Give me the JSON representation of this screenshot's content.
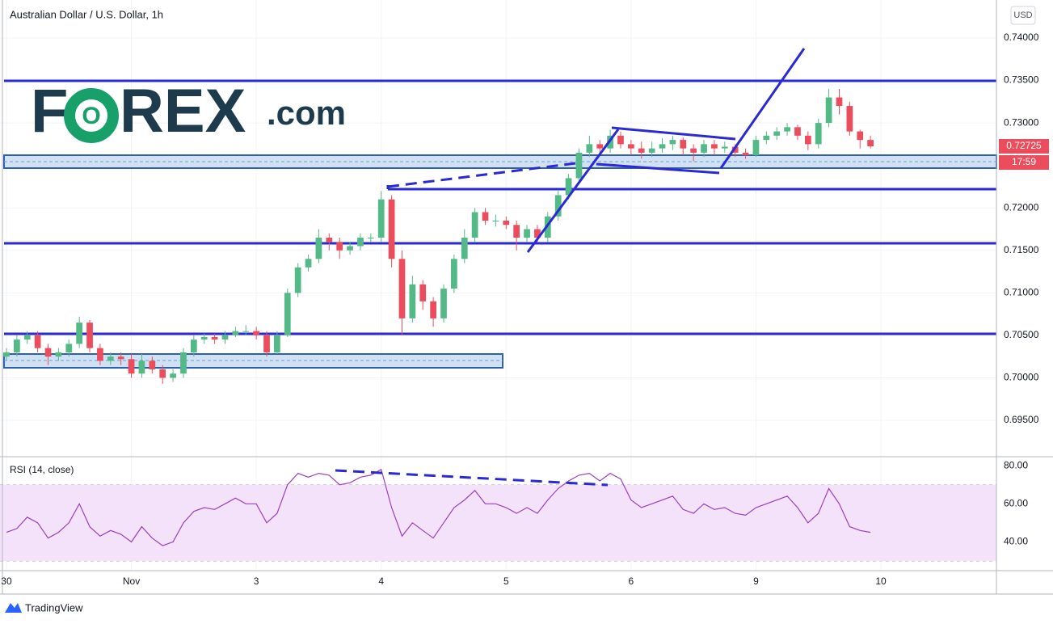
{
  "chart_data": [
    {
      "type": "candlestick",
      "title": "Australian Dollar / U.S. Dollar, 1h",
      "currency": "USD",
      "last_price": "0.72725",
      "countdown": "17:59",
      "logo": [
        "F",
        "O",
        "REX",
        ".com"
      ],
      "footer": "TradingView",
      "up_color": "#53b987",
      "down_color": "#eb4d5c",
      "grid": true,
      "xlim": [
        -1.24,
        190.2
      ],
      "ylim": [
        0.69072,
        0.74447
      ],
      "xticks": [
        {
          "value": 0,
          "label": "30"
        },
        {
          "value": 24,
          "label": "Nov"
        },
        {
          "value": 48,
          "label": "3"
        },
        {
          "value": 72,
          "label": "4"
        },
        {
          "value": 96,
          "label": "5"
        },
        {
          "value": 120,
          "label": "6"
        },
        {
          "value": 144,
          "label": "9"
        },
        {
          "value": 168,
          "label": "10"
        }
      ],
      "yticks": [
        {
          "value": 0.695,
          "label": "0.69500"
        },
        {
          "value": 0.7,
          "label": "0.70000"
        },
        {
          "value": 0.705,
          "label": "0.70500"
        },
        {
          "value": 0.71,
          "label": "0.71000"
        },
        {
          "value": 0.715,
          "label": "0.71500"
        },
        {
          "value": 0.72,
          "label": "0.72000"
        },
        {
          "value": 0.725,
          "label": "0.72500"
        },
        {
          "value": 0.73,
          "label": "0.73000"
        },
        {
          "value": 0.735,
          "label": "0.73500"
        },
        {
          "value": 0.74,
          "label": "0.74000"
        }
      ],
      "x": [
        0,
        2,
        4,
        6,
        8,
        10,
        12,
        14,
        16,
        18,
        20,
        22,
        24,
        26,
        28,
        30,
        32,
        34,
        36,
        38,
        40,
        42,
        44,
        46,
        48,
        50,
        52,
        54,
        56,
        58,
        60,
        62,
        64,
        66,
        68,
        70,
        72,
        74,
        76,
        78,
        80,
        82,
        84,
        86,
        88,
        90,
        92,
        94,
        96,
        98,
        100,
        102,
        104,
        106,
        108,
        110,
        112,
        114,
        116,
        118,
        120,
        122,
        124,
        126,
        128,
        130,
        132,
        134,
        136,
        138,
        140,
        142,
        144,
        146,
        148,
        150,
        152,
        154,
        156,
        158,
        160,
        162,
        164,
        166
      ],
      "candles": [
        [
          0.7025,
          0.7035,
          0.702,
          0.703
        ],
        [
          0.703,
          0.705,
          0.7025,
          0.7045
        ],
        [
          0.7045,
          0.7055,
          0.704,
          0.705
        ],
        [
          0.705,
          0.7055,
          0.703,
          0.7035
        ],
        [
          0.7035,
          0.704,
          0.7015,
          0.7025
        ],
        [
          0.7025,
          0.7035,
          0.702,
          0.703
        ],
        [
          0.703,
          0.7045,
          0.7025,
          0.704
        ],
        [
          0.704,
          0.7072,
          0.7035,
          0.7065
        ],
        [
          0.7065,
          0.7068,
          0.703,
          0.7035
        ],
        [
          0.7035,
          0.704,
          0.7015,
          0.702
        ],
        [
          0.702,
          0.703,
          0.7015,
          0.7025
        ],
        [
          0.7025,
          0.703,
          0.7015,
          0.7022
        ],
        [
          0.7022,
          0.7028,
          0.7,
          0.7005
        ],
        [
          0.7005,
          0.7028,
          0.7,
          0.702
        ],
        [
          0.702,
          0.7025,
          0.7005,
          0.701
        ],
        [
          0.701,
          0.7015,
          0.6993,
          0.7
        ],
        [
          0.7,
          0.701,
          0.6995,
          0.7005
        ],
        [
          0.7005,
          0.7035,
          0.7,
          0.703
        ],
        [
          0.703,
          0.705,
          0.7025,
          0.7045
        ],
        [
          0.7045,
          0.7052,
          0.704,
          0.7048
        ],
        [
          0.7048,
          0.7052,
          0.704,
          0.7045
        ],
        [
          0.7045,
          0.7055,
          0.704,
          0.705
        ],
        [
          0.705,
          0.706,
          0.7048,
          0.7055
        ],
        [
          0.7055,
          0.7062,
          0.705,
          0.7055
        ],
        [
          0.7055,
          0.706,
          0.7045,
          0.705
        ],
        [
          0.705,
          0.7055,
          0.7025,
          0.703
        ],
        [
          0.703,
          0.7055,
          0.7028,
          0.705
        ],
        [
          0.705,
          0.7105,
          0.7048,
          0.71
        ],
        [
          0.71,
          0.7135,
          0.7095,
          0.713
        ],
        [
          0.713,
          0.7145,
          0.7125,
          0.714
        ],
        [
          0.714,
          0.7175,
          0.7135,
          0.7165
        ],
        [
          0.7165,
          0.717,
          0.715,
          0.716
        ],
        [
          0.716,
          0.7165,
          0.714,
          0.715
        ],
        [
          0.715,
          0.716,
          0.7145,
          0.7155
        ],
        [
          0.7155,
          0.717,
          0.715,
          0.7165
        ],
        [
          0.7165,
          0.717,
          0.716,
          0.7165
        ],
        [
          0.7165,
          0.722,
          0.716,
          0.721
        ],
        [
          0.721,
          0.7215,
          0.713,
          0.714
        ],
        [
          0.714,
          0.715,
          0.705,
          0.707
        ],
        [
          0.707,
          0.712,
          0.7065,
          0.711
        ],
        [
          0.711,
          0.7115,
          0.708,
          0.709
        ],
        [
          0.709,
          0.7095,
          0.706,
          0.707
        ],
        [
          0.707,
          0.711,
          0.7065,
          0.7105
        ],
        [
          0.7105,
          0.7145,
          0.71,
          0.714
        ],
        [
          0.714,
          0.7175,
          0.7135,
          0.7165
        ],
        [
          0.7165,
          0.72,
          0.716,
          0.7195
        ],
        [
          0.7195,
          0.72,
          0.718,
          0.7185
        ],
        [
          0.7185,
          0.7192,
          0.7178,
          0.7185
        ],
        [
          0.7185,
          0.719,
          0.7175,
          0.718
        ],
        [
          0.718,
          0.7185,
          0.715,
          0.7165
        ],
        [
          0.7165,
          0.718,
          0.716,
          0.7175
        ],
        [
          0.7175,
          0.718,
          0.716,
          0.7165
        ],
        [
          0.7165,
          0.7195,
          0.716,
          0.719
        ],
        [
          0.719,
          0.722,
          0.7185,
          0.7215
        ],
        [
          0.7215,
          0.724,
          0.721,
          0.7235
        ],
        [
          0.7235,
          0.727,
          0.723,
          0.7265
        ],
        [
          0.7265,
          0.7285,
          0.726,
          0.7275
        ],
        [
          0.7275,
          0.728,
          0.7262,
          0.727
        ],
        [
          0.727,
          0.7292,
          0.7265,
          0.7285
        ],
        [
          0.7285,
          0.729,
          0.727,
          0.7275
        ],
        [
          0.7275,
          0.728,
          0.7262,
          0.727
        ],
        [
          0.727,
          0.7278,
          0.7258,
          0.7265
        ],
        [
          0.7265,
          0.7278,
          0.726,
          0.727
        ],
        [
          0.727,
          0.7282,
          0.7265,
          0.7275
        ],
        [
          0.7275,
          0.7285,
          0.7268,
          0.728
        ],
        [
          0.728,
          0.7283,
          0.7262,
          0.727
        ],
        [
          0.727,
          0.7275,
          0.7255,
          0.7265
        ],
        [
          0.7265,
          0.728,
          0.726,
          0.7275
        ],
        [
          0.7275,
          0.728,
          0.7262,
          0.727
        ],
        [
          0.727,
          0.7278,
          0.7265,
          0.7272
        ],
        [
          0.7272,
          0.7275,
          0.726,
          0.7265
        ],
        [
          0.7265,
          0.727,
          0.7258,
          0.7262
        ],
        [
          0.7262,
          0.7285,
          0.726,
          0.728
        ],
        [
          0.728,
          0.729,
          0.7275,
          0.7285
        ],
        [
          0.7285,
          0.7295,
          0.728,
          0.729
        ],
        [
          0.729,
          0.73,
          0.7285,
          0.7295
        ],
        [
          0.7295,
          0.7298,
          0.728,
          0.7285
        ],
        [
          0.7285,
          0.729,
          0.7268,
          0.7275
        ],
        [
          0.7275,
          0.7305,
          0.727,
          0.73
        ],
        [
          0.73,
          0.734,
          0.7295,
          0.733
        ],
        [
          0.733,
          0.734,
          0.731,
          0.732
        ],
        [
          0.732,
          0.7325,
          0.7285,
          0.729
        ],
        [
          0.729,
          0.7292,
          0.727,
          0.728
        ],
        [
          0.728,
          0.7285,
          0.727,
          0.72725
        ]
      ]
    },
    {
      "type": "line",
      "title": "RSI (14, close)",
      "color": "#9c3fc0",
      "band": [
        30,
        70
      ],
      "ylim": [
        24.9,
        84.3
      ],
      "yticks": [
        {
          "value": 40,
          "label": "40.00"
        },
        {
          "value": 60,
          "label": "60.00"
        },
        {
          "value": 80,
          "label": "80.00"
        }
      ],
      "values": [
        45,
        47,
        53,
        50,
        42,
        45,
        50,
        60,
        48,
        43,
        46,
        44,
        40,
        48,
        42,
        38,
        40,
        50,
        56,
        58,
        57,
        60,
        63,
        60,
        60,
        50,
        55,
        70,
        76,
        74,
        76,
        75,
        70,
        71,
        74,
        75,
        78,
        58,
        43,
        50,
        46,
        42,
        50,
        58,
        62,
        67,
        60,
        60,
        58,
        55,
        58,
        55,
        62,
        68,
        72,
        75,
        76,
        72,
        76,
        73,
        62,
        58,
        60,
        62,
        64,
        57,
        55,
        60,
        57,
        58,
        55,
        54,
        58,
        60,
        62,
        64,
        58,
        50,
        55,
        68,
        60,
        48,
        46,
        45
      ]
    }
  ]
}
